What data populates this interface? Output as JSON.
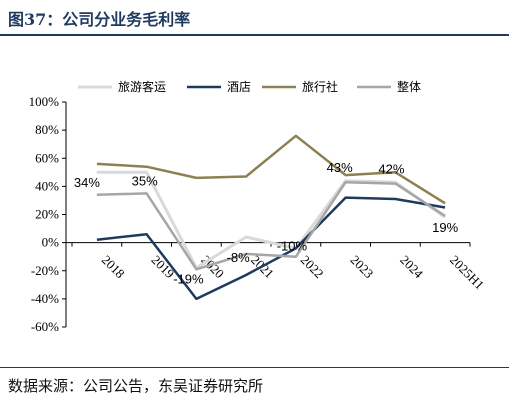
{
  "header": {
    "title": "图37：公司分业务毛利率"
  },
  "footer": {
    "source": "数据来源：公司公告，东吴证券研究所"
  },
  "chart_data": {
    "type": "line",
    "categories": [
      "2018",
      "2019",
      "2020",
      "2021",
      "2022",
      "2023",
      "2024",
      "2025H1"
    ],
    "series": [
      {
        "name": "旅游客运",
        "color": "#d9d9d9",
        "values": [
          50,
          50,
          -18,
          4,
          -4,
          44,
          43,
          18
        ]
      },
      {
        "name": "酒店",
        "color": "#1f3a5f",
        "values": [
          2,
          6,
          -40,
          -23,
          -4,
          32,
          31,
          25
        ]
      },
      {
        "name": "旅行社",
        "color": "#8c8152",
        "values": [
          56,
          54,
          46,
          47,
          76,
          48,
          50,
          28
        ]
      },
      {
        "name": "整体",
        "color": "#a6a6a6",
        "values": [
          34,
          35,
          -19,
          -8,
          -10,
          43,
          42,
          19
        ]
      }
    ],
    "data_labels": [
      {
        "series": "整体",
        "index": 0,
        "text": "34%"
      },
      {
        "series": "整体",
        "index": 1,
        "text": "35%"
      },
      {
        "series": "整体",
        "index": 2,
        "text": "-19%"
      },
      {
        "series": "整体",
        "index": 3,
        "text": "-8%"
      },
      {
        "series": "整体",
        "index": 4,
        "text": "-10%"
      },
      {
        "series": "整体",
        "index": 5,
        "text": "43%"
      },
      {
        "series": "整体",
        "index": 6,
        "text": "42%"
      },
      {
        "series": "整体",
        "index": 7,
        "text": "19%"
      }
    ],
    "ylim": [
      -60,
      100
    ],
    "yticks": [
      -60,
      -40,
      -20,
      0,
      20,
      40,
      60,
      80,
      100
    ],
    "ytick_labels": [
      "-60%",
      "-40%",
      "-20%",
      "0%",
      "20%",
      "40%",
      "60%",
      "80%",
      "100%"
    ],
    "legend": "top",
    "grid": false
  }
}
